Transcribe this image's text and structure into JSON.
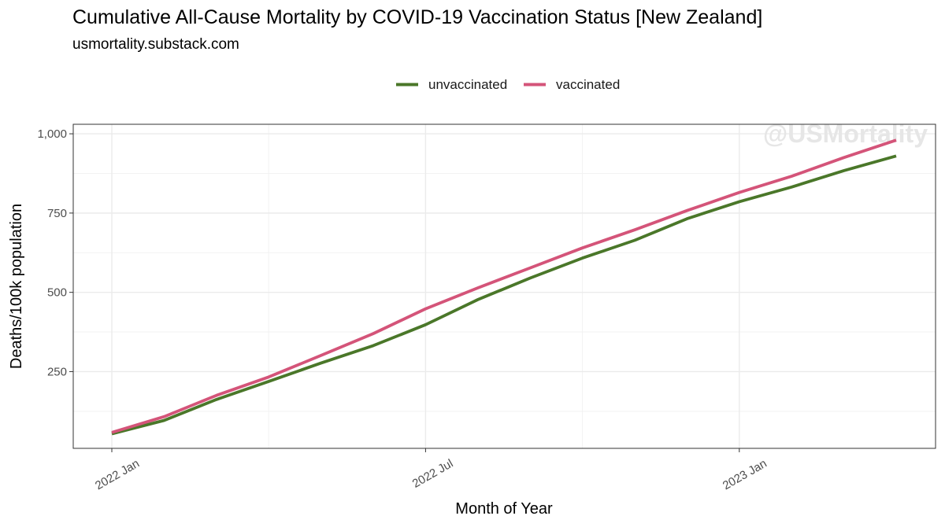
{
  "chart_data": {
    "type": "line",
    "title": "Cumulative All-Cause Mortality by COVID-19 Vaccination Status [New Zealand]",
    "subtitle": "usmortality.substack.com",
    "watermark": "@USMortality",
    "xlabel": "Month of Year",
    "ylabel": "Deaths/100k population",
    "x": [
      "2022-01",
      "2022-02",
      "2022-03",
      "2022-04",
      "2022-05",
      "2022-06",
      "2022-07",
      "2022-08",
      "2022-09",
      "2022-10",
      "2022-11",
      "2022-12",
      "2023-01",
      "2023-02",
      "2023-03",
      "2023-04"
    ],
    "x_ticks": [
      {
        "x": "2022-01",
        "label": "2022 Jan"
      },
      {
        "x": "2022-07",
        "label": "2022 Jul"
      },
      {
        "x": "2023-01",
        "label": "2023 Jan"
      }
    ],
    "y_ticks": [
      {
        "value": 250,
        "label": "250"
      },
      {
        "value": 500,
        "label": "500"
      },
      {
        "value": 750,
        "label": "750"
      },
      {
        "value": 1000,
        "label": "1,000"
      }
    ],
    "ylim": [
      8,
      1030
    ],
    "grid": true,
    "legend_position": "top",
    "series": [
      {
        "name": "unvaccinated",
        "color": "#4a7729",
        "values": [
          54,
          96,
          162,
          219,
          277,
          332,
          398,
          477,
          545,
          608,
          664,
          732,
          786,
          832,
          884,
          930
        ]
      },
      {
        "name": "vaccinated",
        "color": "#d45479",
        "values": [
          58,
          108,
          175,
          233,
          301,
          370,
          448,
          514,
          577,
          640,
          697,
          758,
          815,
          866,
          925,
          980
        ]
      }
    ]
  }
}
